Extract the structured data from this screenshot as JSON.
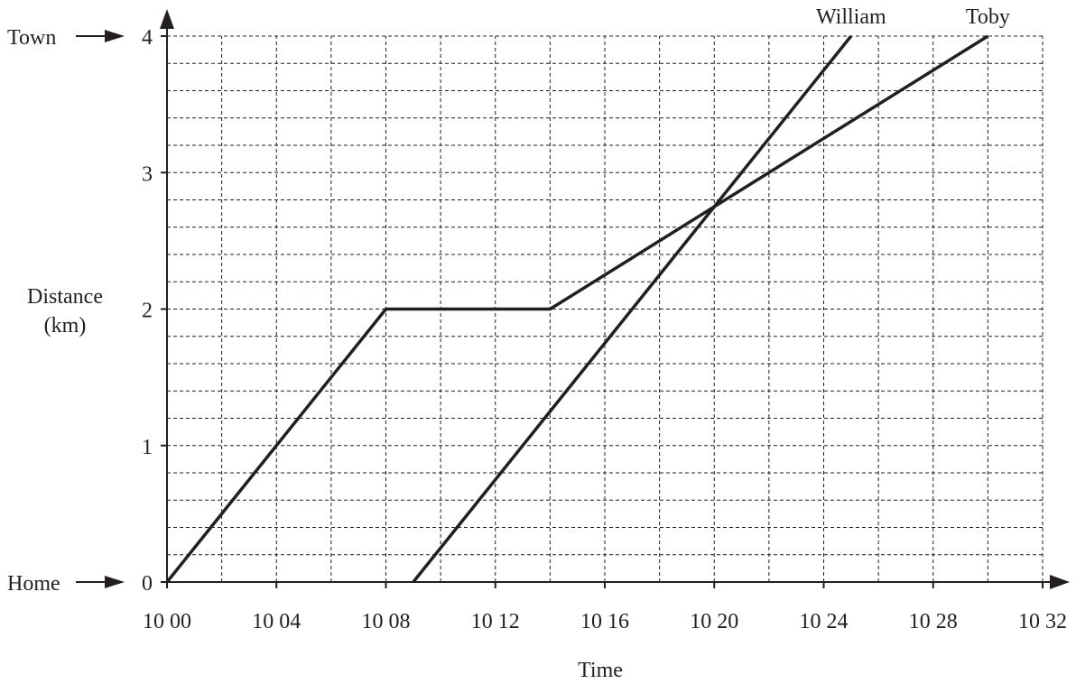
{
  "chart_data": {
    "type": "line",
    "xlabel": "Time",
    "ylabel_lines": [
      "Distance",
      "(km)"
    ],
    "x_ticks": [
      {
        "minutes": 0,
        "label": "10 00"
      },
      {
        "minutes": 4,
        "label": "10 04"
      },
      {
        "minutes": 8,
        "label": "10 08"
      },
      {
        "minutes": 12,
        "label": "10 12"
      },
      {
        "minutes": 16,
        "label": "10 16"
      },
      {
        "minutes": 20,
        "label": "10 20"
      },
      {
        "minutes": 24,
        "label": "10 24"
      },
      {
        "minutes": 28,
        "label": "10 28"
      },
      {
        "minutes": 32,
        "label": "10 32"
      }
    ],
    "y_ticks": [
      {
        "value": 0,
        "label": "0"
      },
      {
        "value": 1,
        "label": "1"
      },
      {
        "value": 2,
        "label": "2"
      },
      {
        "value": 3,
        "label": "3"
      },
      {
        "value": 4,
        "label": "4"
      }
    ],
    "xlim_minutes": [
      0,
      32
    ],
    "ylim": [
      0,
      4
    ],
    "x_grid_step_minutes": 2,
    "y_grid_step": 0.2,
    "grid": true,
    "y_markers": [
      {
        "value": 4,
        "label": "Town"
      },
      {
        "value": 0,
        "label": "Home"
      }
    ],
    "series": [
      {
        "name": "William",
        "points": [
          {
            "x": "10 09",
            "y": 0
          },
          {
            "x": "10 25",
            "y": 4
          }
        ]
      },
      {
        "name": "Toby",
        "points": [
          {
            "x": "10 00",
            "y": 0
          },
          {
            "x": "10 08",
            "y": 2
          },
          {
            "x": "10 14",
            "y": 2
          },
          {
            "x": "10 30",
            "y": 4
          }
        ]
      }
    ]
  }
}
